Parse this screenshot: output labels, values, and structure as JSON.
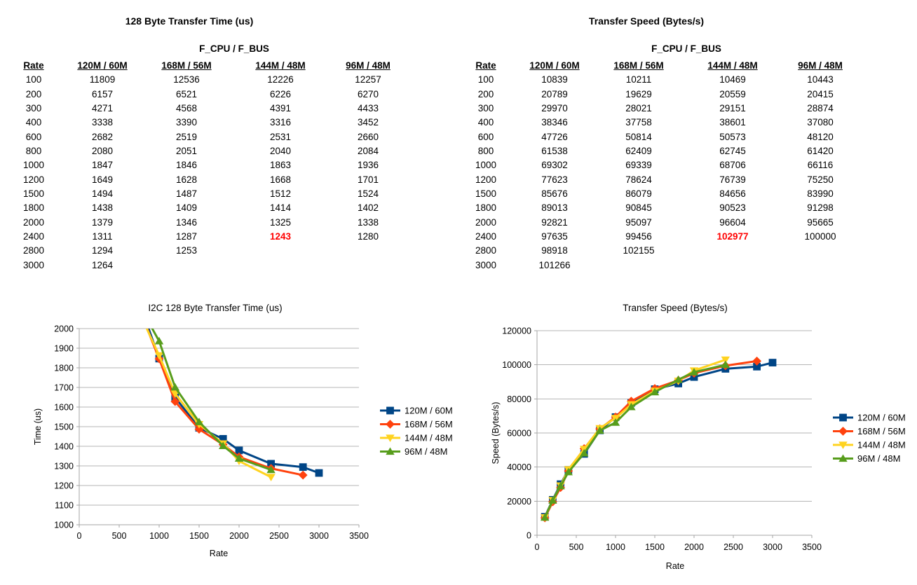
{
  "page": {
    "background": "#ffffff"
  },
  "palette": {
    "blue": "#004586",
    "red": "#FF420E",
    "yellow": "#FFD320",
    "green": "#579D1C",
    "highlight": "#FF0000",
    "gridline": "#b6b6b6",
    "axis": "#a6a6a6"
  },
  "tables": [
    {
      "title": "128 Byte Transfer Time (us)",
      "group_header": "F_CPU / F_BUS",
      "columns": [
        "Rate",
        "120M / 60M",
        "168M / 56M",
        "144M / 48M",
        "96M / 48M"
      ],
      "rows": [
        [
          100,
          11809,
          12536,
          12226,
          12257
        ],
        [
          200,
          6157,
          6521,
          6226,
          6270
        ],
        [
          300,
          4271,
          4568,
          4391,
          4433
        ],
        [
          400,
          3338,
          3390,
          3316,
          3452
        ],
        [
          600,
          2682,
          2519,
          2531,
          2660
        ],
        [
          800,
          2080,
          2051,
          2040,
          2084
        ],
        [
          1000,
          1847,
          1846,
          1863,
          1936
        ],
        [
          1200,
          1649,
          1628,
          1668,
          1701
        ],
        [
          1500,
          1494,
          1487,
          1512,
          1524
        ],
        [
          1800,
          1438,
          1409,
          1414,
          1402
        ],
        [
          2000,
          1379,
          1346,
          1325,
          1338
        ],
        [
          2400,
          1311,
          1287,
          1243,
          1280
        ],
        [
          2800,
          1294,
          1253,
          null,
          null
        ],
        [
          3000,
          1264,
          null,
          null,
          null
        ]
      ],
      "highlight": {
        "row": 11,
        "col": 3
      }
    },
    {
      "title": "Transfer Speed (Bytes/s)",
      "group_header": "F_CPU / F_BUS",
      "columns": [
        "Rate",
        "120M / 60M",
        "168M / 56M",
        "144M / 48M",
        "96M / 48M"
      ],
      "rows": [
        [
          100,
          10839,
          10211,
          10469,
          10443
        ],
        [
          200,
          20789,
          19629,
          20559,
          20415
        ],
        [
          300,
          29970,
          28021,
          29151,
          28874
        ],
        [
          400,
          38346,
          37758,
          38601,
          37080
        ],
        [
          600,
          47726,
          50814,
          50573,
          48120
        ],
        [
          800,
          61538,
          62409,
          62745,
          61420
        ],
        [
          1000,
          69302,
          69339,
          68706,
          66116
        ],
        [
          1200,
          77623,
          78624,
          76739,
          75250
        ],
        [
          1500,
          85676,
          86079,
          84656,
          83990
        ],
        [
          1800,
          89013,
          90845,
          90523,
          91298
        ],
        [
          2000,
          92821,
          95097,
          96604,
          95665
        ],
        [
          2400,
          97635,
          99456,
          102977,
          100000
        ],
        [
          2800,
          98918,
          102155,
          null,
          null
        ],
        [
          3000,
          101266,
          null,
          null,
          null
        ]
      ],
      "highlight": {
        "row": 11,
        "col": 3
      }
    }
  ],
  "chart_data": [
    {
      "type": "line",
      "title": "I2C 128 Byte Transfer Time (us)",
      "xlabel": "Rate",
      "ylabel": "Time (us)",
      "xlim": [
        0,
        3500
      ],
      "ylim": [
        1000,
        2000
      ],
      "xtick_step": 500,
      "ytick_step": 100,
      "grid": "horizontal",
      "legend_position": "right",
      "x": [
        100,
        200,
        300,
        400,
        600,
        800,
        1000,
        1200,
        1500,
        1800,
        2000,
        2400,
        2800,
        3000
      ],
      "series": [
        {
          "name": "120M / 60M",
          "color": "#004586",
          "marker": "square",
          "values": [
            11809,
            6157,
            4271,
            3338,
            2682,
            2080,
            1847,
            1649,
            1494,
            1438,
            1379,
            1311,
            1294,
            1264
          ]
        },
        {
          "name": "168M / 56M",
          "color": "#FF420E",
          "marker": "diamond",
          "values": [
            12536,
            6521,
            4568,
            3390,
            2519,
            2051,
            1846,
            1628,
            1487,
            1409,
            1346,
            1287,
            1253,
            null
          ]
        },
        {
          "name": "144M / 48M",
          "color": "#FFD320",
          "marker": "triangle-down",
          "values": [
            12226,
            6226,
            4391,
            3316,
            2531,
            2040,
            1863,
            1668,
            1512,
            1414,
            1325,
            1243,
            null,
            null
          ]
        },
        {
          "name": "96M / 48M",
          "color": "#579D1C",
          "marker": "triangle-up",
          "values": [
            12257,
            6270,
            4433,
            3452,
            2660,
            2084,
            1936,
            1701,
            1524,
            1402,
            1338,
            1280,
            null,
            null
          ]
        }
      ]
    },
    {
      "type": "line",
      "title": "Transfer Speed (Bytes/s)",
      "xlabel": "Rate",
      "ylabel": "Speed (Bytes/s)",
      "xlim": [
        0,
        3500
      ],
      "ylim": [
        0,
        120000
      ],
      "xtick_step": 500,
      "ytick_step": 20000,
      "grid": "horizontal",
      "legend_position": "right",
      "x": [
        100,
        200,
        300,
        400,
        600,
        800,
        1000,
        1200,
        1500,
        1800,
        2000,
        2400,
        2800,
        3000
      ],
      "series": [
        {
          "name": "120M / 60M",
          "color": "#004586",
          "marker": "square",
          "values": [
            10839,
            20789,
            29970,
            38346,
            47726,
            61538,
            69302,
            77623,
            85676,
            89013,
            92821,
            97635,
            98918,
            101266
          ]
        },
        {
          "name": "168M / 56M",
          "color": "#FF420E",
          "marker": "diamond",
          "values": [
            10211,
            19629,
            28021,
            37758,
            50814,
            62409,
            69339,
            78624,
            86079,
            90845,
            95097,
            99456,
            102155,
            null
          ]
        },
        {
          "name": "144M / 48M",
          "color": "#FFD320",
          "marker": "triangle-down",
          "values": [
            10469,
            20559,
            29151,
            38601,
            50573,
            62745,
            68706,
            76739,
            84656,
            90523,
            96604,
            102977,
            null,
            null
          ]
        },
        {
          "name": "96M / 48M",
          "color": "#579D1C",
          "marker": "triangle-up",
          "values": [
            10443,
            20415,
            28874,
            37080,
            48120,
            61420,
            66116,
            75250,
            83990,
            91298,
            95665,
            100000,
            null,
            null
          ]
        }
      ]
    }
  ]
}
